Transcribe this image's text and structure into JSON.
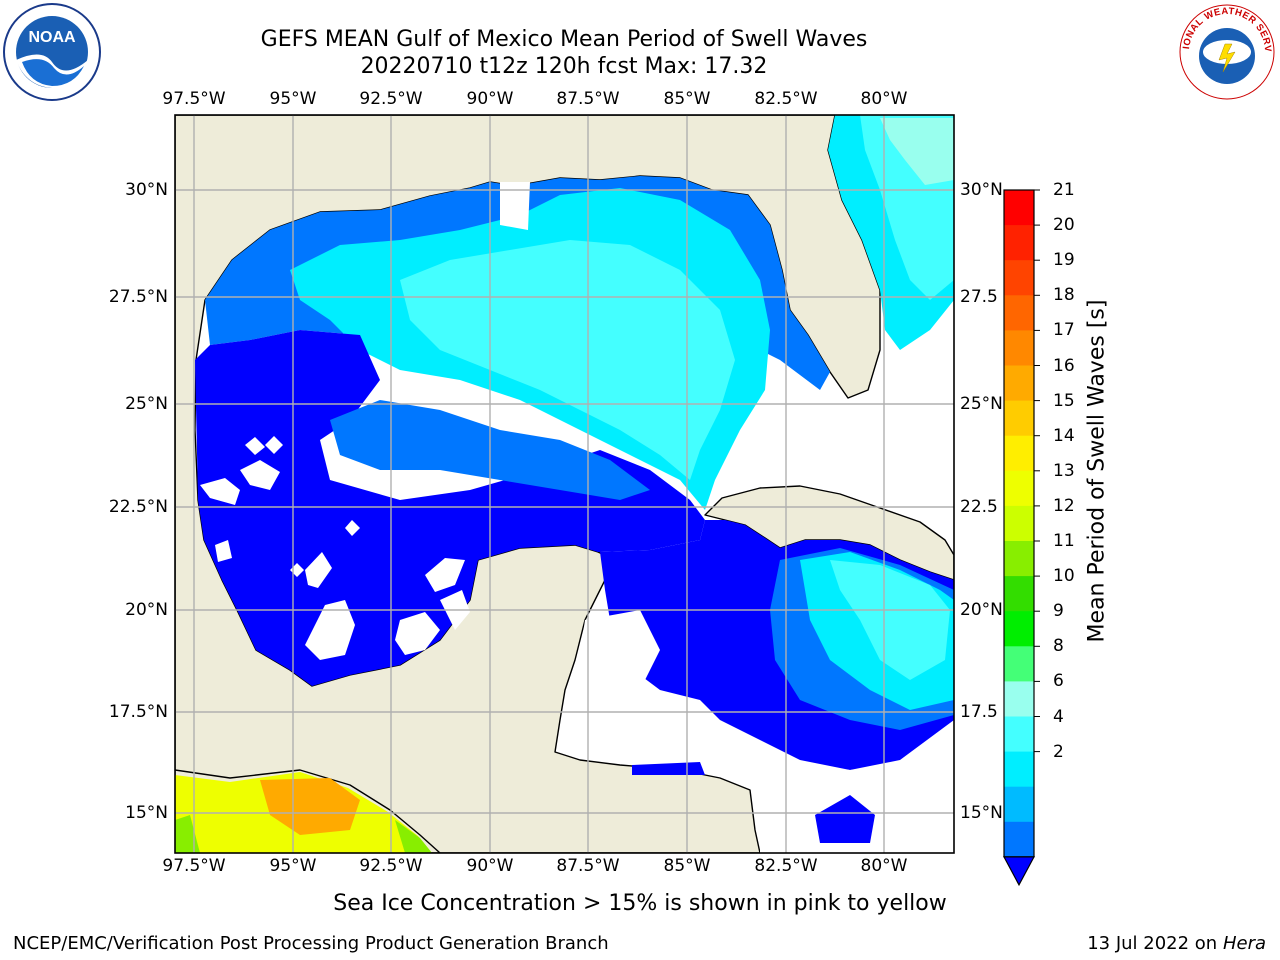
{
  "title": {
    "line1": "GEFS MEAN Gulf of Mexico Mean Period of Swell Waves",
    "line2": "20220710 t12z 120h fcst   Max: 17.32"
  },
  "logos": {
    "left": "NOAA",
    "right": "NATIONAL WEATHER SERVICE"
  },
  "longitude_ticks": [
    "97.5°W",
    "95°W",
    "92.5°W",
    "90°W",
    "87.5°W",
    "85°W",
    "82.5°W",
    "80°W"
  ],
  "latitude_ticks_left": [
    "30°N",
    "27.5°N",
    "25°N",
    "22.5°N",
    "20°N",
    "17.5°N",
    "15°N"
  ],
  "latitude_ticks_right": [
    "30°N",
    "27.5",
    "25°N",
    "22.5",
    "20°N",
    "17.5",
    "15°N"
  ],
  "colorbar": {
    "label": "Mean Period of Swell Waves [s]",
    "ticks": [
      "21",
      "20",
      "19",
      "18",
      "17",
      "16",
      "15",
      "14",
      "13",
      "12",
      "11",
      "10",
      "9",
      "8",
      "6",
      "4",
      "2"
    ],
    "colors": [
      "#ff0000",
      "#ff2200",
      "#ff4400",
      "#ff6600",
      "#ff8800",
      "#ffaa00",
      "#ffcc00",
      "#ffee00",
      "#eeff00",
      "#ccff00",
      "#88ee00",
      "#33dd00",
      "#00ee00",
      "#44ff77",
      "#99ffee",
      "#44ffff",
      "#00eeff",
      "#00bbff",
      "#0077ff",
      "#0000ff"
    ]
  },
  "map_colors": {
    "land": "#eeecd9",
    "deep_blue": "#0000ff",
    "mid_blue": "#0077ff",
    "cyan": "#00eeff",
    "light_cyan": "#44ffff",
    "pale_cyan": "#99ffee",
    "yellow": "#eeff00",
    "orange": "#ffaa00",
    "missing": "#ffffff"
  },
  "note": "Sea Ice Concentration > 15% is shown in pink to yellow",
  "footer": {
    "left": "NCEP/EMC/Verification Post Processing Product Generation Branch",
    "right_prefix": "13 Jul 2022 on ",
    "right_machine": "Hera"
  }
}
